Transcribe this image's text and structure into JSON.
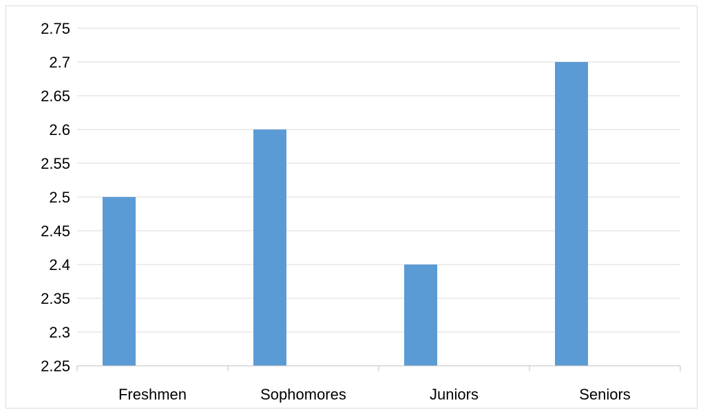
{
  "chart_data": {
    "type": "bar",
    "categories": [
      "Freshmen",
      "Sophomores",
      "Juniors",
      "Seniors"
    ],
    "values": [
      2.5,
      2.6,
      2.4,
      2.7
    ],
    "title": "",
    "xlabel": "",
    "ylabel": "",
    "ylim": [
      2.25,
      2.75
    ],
    "yticks": [
      "2.25",
      "2.3",
      "2.35",
      "2.4",
      "2.45",
      "2.5",
      "2.55",
      "2.6",
      "2.65",
      "2.7",
      "2.75"
    ],
    "grid": true,
    "legend": "none",
    "bar_color": "#5b9bd5",
    "gridline_color": "#d9d9d9",
    "axis_color": "#bfbfbf"
  }
}
